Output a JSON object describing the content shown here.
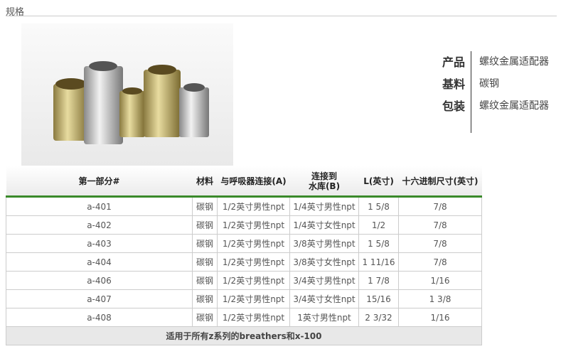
{
  "section_title": "规格",
  "specs": [
    {
      "key": "产品",
      "value": "螺纹金属适配器"
    },
    {
      "key": "基料",
      "value": "碳钢"
    },
    {
      "key": "包装",
      "value": "螺纹金属适配器"
    }
  ],
  "table": {
    "headers": [
      "第一部分#",
      "材料",
      "与呼吸器连接(A)",
      "连接到\n水库(B)",
      "L(英寸)",
      "十六进制尺寸(英寸)"
    ],
    "rows": [
      [
        "a-401",
        "碳钢",
        "1/2英寸男性npt",
        "1/4英寸男性npt",
        "1 5/8",
        "7/8"
      ],
      [
        "a-402",
        "碳钢",
        "1/2英寸男性npt",
        "1/4英寸女性npt",
        "1/2",
        "7/8"
      ],
      [
        "a-403",
        "碳钢",
        "1/2英寸男性npt",
        "3/8英寸男性npt",
        "1 5/8",
        "7/8"
      ],
      [
        "a-404",
        "碳钢",
        "1/2英寸男性npt",
        "3/8英寸女性npt",
        "1 11/16",
        "7/8"
      ],
      [
        "a-406",
        "碳钢",
        "1/2英寸男性npt",
        "3/4英寸男性npt",
        "1 7/8",
        "1/16"
      ],
      [
        "a-407",
        "碳钢",
        "1/2英寸男性npt",
        "3/4英寸女性npt",
        "15/16",
        "1 3/8"
      ],
      [
        "a-408",
        "碳钢",
        "1/2英寸男性npt",
        "1英寸男性npt",
        "2 3/32",
        "1/16"
      ]
    ],
    "footer": "适用于所有z系列的breathers和x-100"
  },
  "colors": {
    "header_rule": "#3a8a2a",
    "footer_bg": "#e8e8e8"
  }
}
